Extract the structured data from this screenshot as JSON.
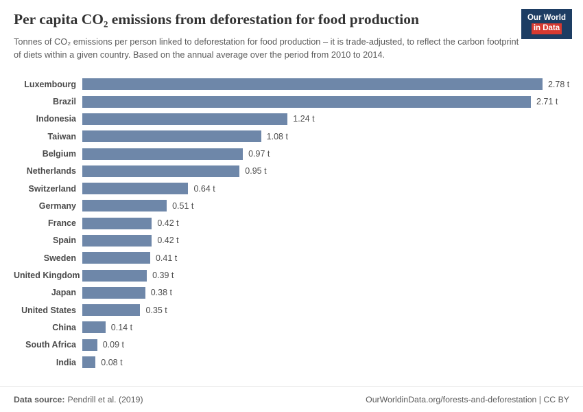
{
  "logo": {
    "line1": "Our World",
    "line2": "in Data",
    "bg_color": "#1d3d63",
    "accent_color": "#d73a31"
  },
  "footer": {
    "source_label": "Data source:",
    "source_value": "Pendrill et al. (2019)",
    "right": "OurWorldinData.org/forests-and-deforestation | CC BY"
  },
  "chart_data": {
    "type": "bar",
    "orientation": "horizontal",
    "title": "Per capita CO₂ emissions from deforestation for food production",
    "subtitle": "Tonnes of CO₂ emissions per person linked to deforestation for food production – it is trade-adjusted, to reflect the carbon footprint of diets within a given country. Based on the annual average over the period from 2010 to 2014.",
    "categories": [
      "Luxembourg",
      "Brazil",
      "Indonesia",
      "Taiwan",
      "Belgium",
      "Netherlands",
      "Switzerland",
      "Germany",
      "France",
      "Spain",
      "Sweden",
      "United Kingdom",
      "Japan",
      "United States",
      "China",
      "South Africa",
      "India"
    ],
    "values": [
      2.78,
      2.71,
      1.24,
      1.08,
      0.97,
      0.95,
      0.64,
      0.51,
      0.42,
      0.42,
      0.41,
      0.39,
      0.38,
      0.35,
      0.14,
      0.09,
      0.08
    ],
    "value_labels": [
      "2.78 t",
      "2.71 t",
      "1.24 t",
      "1.08 t",
      "0.97 t",
      "0.95 t",
      "0.64 t",
      "0.51 t",
      "0.42 t",
      "0.42 t",
      "0.41 t",
      "0.39 t",
      "0.38 t",
      "0.35 t",
      "0.14 t",
      "0.09 t",
      "0.08 t"
    ],
    "unit": "t",
    "xlim": [
      0,
      2.9
    ],
    "grid": false,
    "legend": false,
    "bar_color": "#6e87a9"
  }
}
